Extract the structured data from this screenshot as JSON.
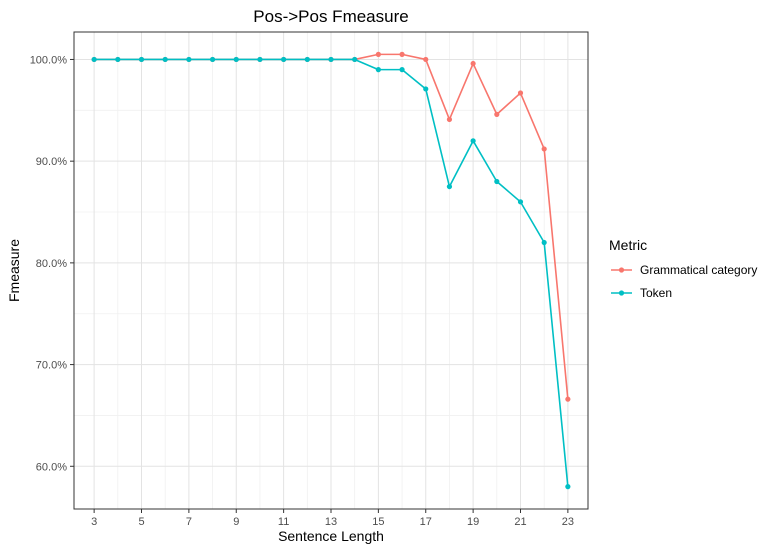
{
  "chart_data": {
    "type": "line",
    "title": "Pos->Pos Fmeasure",
    "xlabel": "Sentence Length",
    "ylabel": "Fmeasure",
    "x": [
      3,
      4,
      5,
      6,
      7,
      8,
      9,
      10,
      11,
      12,
      13,
      14,
      15,
      16,
      17,
      18,
      19,
      20,
      21,
      22,
      23
    ],
    "x_ticks": [
      3,
      5,
      7,
      9,
      11,
      13,
      15,
      17,
      19,
      21,
      23
    ],
    "xlim": [
      2.15,
      23.85
    ],
    "y_ticks": [
      0.6,
      0.7,
      0.8,
      0.9,
      1.0
    ],
    "y_tick_labels": [
      "60.0%",
      "70.0%",
      "80.0%",
      "90.0%",
      "100.0%"
    ],
    "ylim": [
      0.558,
      1.027
    ],
    "grid": true,
    "legend_title": "Metric",
    "legend_position": "right",
    "series": [
      {
        "name": "Grammatical category",
        "color": "#F8766D",
        "values": [
          1.0,
          1.0,
          1.0,
          1.0,
          1.0,
          1.0,
          1.0,
          1.0,
          1.0,
          1.0,
          1.0,
          1.0,
          1.005,
          1.005,
          1.0,
          0.941,
          0.996,
          0.946,
          0.967,
          0.912,
          0.666
        ]
      },
      {
        "name": "Token",
        "color": "#00BFC4",
        "values": [
          1.0,
          1.0,
          1.0,
          1.0,
          1.0,
          1.0,
          1.0,
          1.0,
          1.0,
          1.0,
          1.0,
          1.0,
          0.99,
          0.99,
          0.971,
          0.875,
          0.92,
          0.88,
          0.86,
          0.82,
          0.58
        ]
      }
    ]
  }
}
